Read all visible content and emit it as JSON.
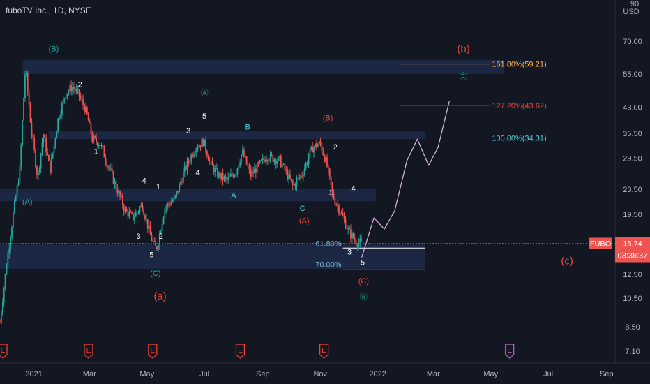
{
  "header": {
    "symbol_title": "fuboTV Inc., 1D, NYSE",
    "currency": "USD",
    "top_price": "90"
  },
  "price_badge": {
    "ticker": "FUBO",
    "price": "15.74",
    "countdown": "03:36:37"
  },
  "colors": {
    "background": "#131722",
    "up": "#26a69a",
    "down": "#ef5350",
    "zone": "#1e2a4a",
    "teal": "#26a69a",
    "red": "#f44336",
    "orange": "#ffb74d",
    "cyan": "#4dd0e1"
  },
  "chart_data": {
    "type": "candlestick",
    "y_scale": "log",
    "ylim": [
      6.5,
      95
    ],
    "price_ticks": [
      "70.00",
      "55.00",
      "43.00",
      "35.50",
      "29.50",
      "23.50",
      "19.50",
      "15.74",
      "12.50",
      "10.50",
      "8.50",
      "7.10"
    ],
    "time_ticks": [
      "2021",
      "Mar",
      "May",
      "Jul",
      "Sep",
      "Nov",
      "2022",
      "Mar",
      "May",
      "Jul",
      "Sep"
    ],
    "xlim": [
      "2020-11-26",
      "2022-09-10"
    ],
    "close_series": [
      [
        "2020-11-26",
        8.8
      ],
      [
        "2020-12-03",
        13.5
      ],
      [
        "2020-12-10",
        19.5
      ],
      [
        "2020-12-17",
        27.0
      ],
      [
        "2020-12-23",
        58.0
      ],
      [
        "2020-12-29",
        37.0
      ],
      [
        "2021-01-05",
        25.5
      ],
      [
        "2021-01-11",
        35.5
      ],
      [
        "2021-01-18",
        27.0
      ],
      [
        "2021-01-27",
        40.0
      ],
      [
        "2021-02-04",
        48.0
      ],
      [
        "2021-02-11",
        50.0
      ],
      [
        "2021-02-18",
        47.0
      ],
      [
        "2021-02-26",
        41.0
      ],
      [
        "2021-03-04",
        34.0
      ],
      [
        "2021-03-12",
        33.0
      ],
      [
        "2021-03-19",
        29.0
      ],
      [
        "2021-03-29",
        24.0
      ],
      [
        "2021-04-08",
        20.0
      ],
      [
        "2021-04-16",
        19.0
      ],
      [
        "2021-04-26",
        21.0
      ],
      [
        "2021-05-05",
        16.5
      ],
      [
        "2021-05-11",
        15.0
      ],
      [
        "2021-05-20",
        20.5
      ],
      [
        "2021-05-31",
        22.0
      ],
      [
        "2021-06-10",
        27.0
      ],
      [
        "2021-06-21",
        32.0
      ],
      [
        "2021-06-30",
        33.5
      ],
      [
        "2021-07-08",
        28.0
      ],
      [
        "2021-07-16",
        26.0
      ],
      [
        "2021-07-25",
        25.0
      ],
      [
        "2021-08-04",
        27.0
      ],
      [
        "2021-08-10",
        31.0
      ],
      [
        "2021-08-19",
        26.0
      ],
      [
        "2021-09-05",
        30.0
      ],
      [
        "2021-09-19",
        29.0
      ],
      [
        "2021-10-03",
        24.0
      ],
      [
        "2021-10-12",
        26.0
      ],
      [
        "2021-10-24",
        32.0
      ],
      [
        "2021-11-01",
        33.0
      ],
      [
        "2021-11-08",
        28.0
      ],
      [
        "2021-11-14",
        22.5
      ],
      [
        "2021-11-22",
        20.0
      ],
      [
        "2021-12-02",
        17.0
      ],
      [
        "2021-12-09",
        16.0
      ],
      [
        "2021-12-15",
        15.74
      ]
    ],
    "projection_path": [
      [
        "2021-12-15",
        14.2
      ],
      [
        "2021-12-28",
        19.0
      ],
      [
        "2022-01-08",
        17.5
      ],
      [
        "2022-01-19",
        20.0
      ],
      [
        "2022-02-01",
        29.0
      ],
      [
        "2022-02-12",
        34.0
      ],
      [
        "2022-02-24",
        28.0
      ],
      [
        "2022-03-06",
        32.0
      ],
      [
        "2022-03-18",
        45.0
      ]
    ],
    "zones": [
      {
        "from": "2020-12-20",
        "to": "2022-05-15",
        "low": 55.0,
        "high": 61.0
      },
      {
        "from": "2021-01-17",
        "to": "2022-02-20",
        "low": 34.0,
        "high": 36.0
      },
      {
        "from": "2020-11-26",
        "to": "2021-12-30",
        "low": 21.5,
        "high": 23.5
      },
      {
        "from": "2020-11-26",
        "to": "2022-02-20",
        "low": 13.0,
        "high": 15.6
      }
    ],
    "levels": [
      {
        "label": "161.80%(59.21)",
        "value": 59.21,
        "from": "2022-01-25",
        "to": "2022-04-30",
        "color_key": "orange"
      },
      {
        "label": "127.20%(43.62)",
        "value": 43.62,
        "from": "2022-01-25",
        "to": "2022-04-30",
        "color_key": "red"
      },
      {
        "label": "100.00%(34.31)",
        "value": 34.31,
        "from": "2022-01-25",
        "to": "2022-04-30",
        "color_key": "cyan"
      },
      {
        "label": "61.80%",
        "value": 15.2,
        "from": "2021-11-25",
        "to": "2022-02-20",
        "color_key": "white"
      },
      {
        "label": "70.00%",
        "value": 13.0,
        "from": "2021-11-25",
        "to": "2022-02-20",
        "color_key": "white"
      }
    ],
    "wave_labels": [
      {
        "text": "(B)",
        "date": "2021-01-22",
        "price": 65.0,
        "color_key": "teal"
      },
      {
        "text": "2",
        "date": "2021-02-19",
        "price": 50.0,
        "color_key": "white"
      },
      {
        "text": "1",
        "date": "2021-03-08",
        "price": 30.5,
        "color_key": "white"
      },
      {
        "text": "(A)",
        "date": "2020-12-25",
        "price": 21.0,
        "color_key": "teal"
      },
      {
        "text": "4",
        "date": "2021-04-28",
        "price": 24.5,
        "color_key": "white"
      },
      {
        "text": "1",
        "date": "2021-05-13",
        "price": 23.5,
        "color_key": "white"
      },
      {
        "text": "3",
        "date": "2021-04-22",
        "price": 16.3,
        "color_key": "white"
      },
      {
        "text": "2",
        "date": "2021-05-16",
        "price": 16.3,
        "color_key": "white"
      },
      {
        "text": "5",
        "date": "2021-05-06",
        "price": 14.2,
        "color_key": "white"
      },
      {
        "text": "(C)",
        "date": "2021-05-10",
        "price": 12.4,
        "color_key": "teal"
      },
      {
        "text": "(a)",
        "date": "2021-05-15",
        "price": 10.4,
        "color_key": "red"
      },
      {
        "text": "Ⓐ",
        "date": "2021-07-01",
        "price": 47.0,
        "color_key": "teal"
      },
      {
        "text": "5",
        "date": "2021-07-01",
        "price": 39.5,
        "color_key": "white"
      },
      {
        "text": "3",
        "date": "2021-06-14",
        "price": 35.5,
        "color_key": "white"
      },
      {
        "text": "4",
        "date": "2021-06-24",
        "price": 26.0,
        "color_key": "white"
      },
      {
        "text": "B",
        "date": "2021-08-16",
        "price": 36.5,
        "color_key": "cyan"
      },
      {
        "text": "A",
        "date": "2021-08-01",
        "price": 22.0,
        "color_key": "cyan"
      },
      {
        "text": "C",
        "date": "2021-10-13",
        "price": 20.0,
        "color_key": "cyan"
      },
      {
        "text": "(A)",
        "date": "2021-10-15",
        "price": 18.3,
        "color_key": "red"
      },
      {
        "text": "(B)",
        "date": "2021-11-09",
        "price": 39.0,
        "color_key": "red"
      },
      {
        "text": "2",
        "date": "2021-11-17",
        "price": 31.5,
        "color_key": "white"
      },
      {
        "text": "1",
        "date": "2021-11-12",
        "price": 22.5,
        "color_key": "white"
      },
      {
        "text": "4",
        "date": "2021-12-06",
        "price": 23.2,
        "color_key": "white"
      },
      {
        "text": "3",
        "date": "2021-12-02",
        "price": 14.5,
        "color_key": "white"
      },
      {
        "text": "5",
        "date": "2021-12-16",
        "price": 13.4,
        "color_key": "white"
      },
      {
        "text": "(C)",
        "date": "2021-12-17",
        "price": 11.7,
        "color_key": "red"
      },
      {
        "text": "Ⓑ",
        "date": "2021-12-17",
        "price": 10.4,
        "color_key": "teal"
      },
      {
        "text": "(b)",
        "date": "2022-04-02",
        "price": 64.5,
        "color_key": "red"
      },
      {
        "text": "Ⓒ",
        "date": "2022-04-02",
        "price": 53.0,
        "color_key": "teal"
      },
      {
        "text": "(c)",
        "date": "2022-07-21",
        "price": 13.5,
        "color_key": "red"
      }
    ],
    "event_markers": [
      {
        "date": "2020-11-29",
        "text": "E",
        "color_key": "red"
      },
      {
        "date": "2021-02-28",
        "text": "E",
        "color_key": "red"
      },
      {
        "date": "2021-05-07",
        "text": "E",
        "color_key": "red"
      },
      {
        "date": "2021-08-08",
        "text": "E",
        "color_key": "red"
      },
      {
        "date": "2021-11-05",
        "text": "E",
        "color_key": "red"
      },
      {
        "date": "2022-05-21",
        "text": "E",
        "color_key": "purple"
      }
    ]
  }
}
